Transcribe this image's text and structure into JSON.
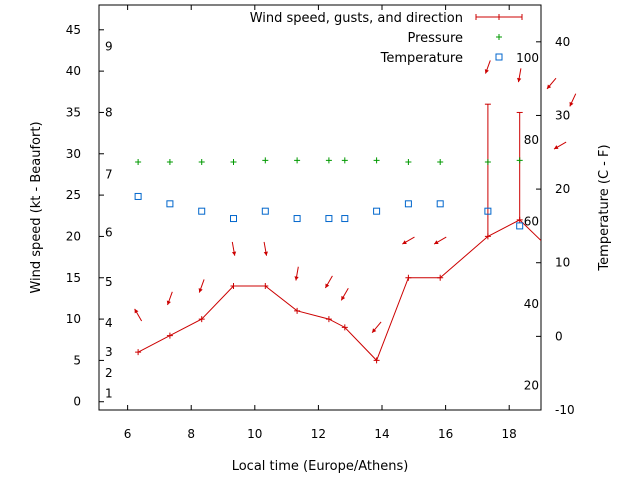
{
  "chart_data": {
    "type": "line",
    "xlabel": "Local time (Europe/Athens)",
    "ylabel": "Wind speed (kt - Beaufort)",
    "y2label": "Temperature (C - F)",
    "xlim": [
      5.1,
      19.0
    ],
    "ylim": [
      -1,
      48
    ],
    "y2lim": [
      -10,
      45
    ],
    "xticks": [
      6,
      8,
      10,
      12,
      14,
      16,
      18
    ],
    "yticks": [
      0,
      5,
      10,
      15,
      20,
      25,
      30,
      35,
      40,
      45
    ],
    "y2ticks": [
      -10,
      0,
      10,
      20,
      30,
      40
    ],
    "beaufort_labels": [
      {
        "label": "1",
        "y": 1
      },
      {
        "label": "2",
        "y": 3.5
      },
      {
        "label": "3",
        "y": 6
      },
      {
        "label": "4",
        "y": 9.5
      },
      {
        "label": "5",
        "y": 14.5
      },
      {
        "label": "6",
        "y": 20.5
      },
      {
        "label": "7",
        "y": 27.5
      },
      {
        "label": "8",
        "y": 35
      },
      {
        "label": "9",
        "y": 43
      }
    ],
    "fahrenheit_labels": [
      {
        "label": "20",
        "y2": -6.7
      },
      {
        "label": "40",
        "y2": 4.4
      },
      {
        "label": "60",
        "y2": 15.6
      },
      {
        "label": "80",
        "y2": 26.7
      },
      {
        "label": "100",
        "y2": 37.8
      }
    ],
    "legend_position": "top-right",
    "series": [
      {
        "name": "Wind speed, gusts, and direction",
        "color": "#cc0000",
        "x": [
          6.33,
          7.33,
          8.33,
          9.33,
          10.33,
          11.33,
          12.33,
          12.83,
          13.83,
          14.83,
          15.83,
          17.33,
          18.33,
          19.0
        ],
        "y": [
          6,
          8,
          10,
          14,
          14,
          11,
          10,
          9,
          5,
          15,
          15,
          20,
          22,
          19.5
        ],
        "gust_high": [
          null,
          null,
          null,
          null,
          null,
          null,
          null,
          null,
          null,
          null,
          null,
          36,
          35,
          null
        ],
        "direction_arrows": [
          {
            "x": 6.33,
            "y": 10.5,
            "deg": 330
          },
          {
            "x": 7.33,
            "y": 12.5,
            "deg": 200
          },
          {
            "x": 8.33,
            "y": 14,
            "deg": 200
          },
          {
            "x": 9.33,
            "y": 18.5,
            "deg": 170
          },
          {
            "x": 10.33,
            "y": 18.5,
            "deg": 170
          },
          {
            "x": 11.33,
            "y": 15.5,
            "deg": 190
          },
          {
            "x": 12.33,
            "y": 14.5,
            "deg": 210
          },
          {
            "x": 12.83,
            "y": 13,
            "deg": 210
          },
          {
            "x": 13.83,
            "y": 9,
            "deg": 220
          },
          {
            "x": 14.83,
            "y": 19.5,
            "deg": 240
          },
          {
            "x": 15.83,
            "y": 19.5,
            "deg": 240
          },
          {
            "x": 17.33,
            "y": 40.5,
            "deg": 200
          },
          {
            "x": 18.33,
            "y": 39.5,
            "deg": 190
          },
          {
            "x": 19.33,
            "y": 38.5,
            "deg": 220
          },
          {
            "x": 20.0,
            "y": 36.5,
            "deg": 205
          },
          {
            "x": 19.6,
            "y": 31,
            "deg": 240
          }
        ]
      },
      {
        "name": "Pressure",
        "color": "#009900",
        "x": [
          6.33,
          7.33,
          8.33,
          9.33,
          10.33,
          11.33,
          12.33,
          12.83,
          13.83,
          14.83,
          15.83,
          17.33,
          18.33
        ],
        "y": [
          29,
          29,
          29,
          29,
          29.2,
          29.2,
          29.2,
          29.2,
          29.2,
          29,
          29,
          29,
          29.2
        ]
      },
      {
        "name": "Temperature",
        "color": "#0066cc",
        "x": [
          6.33,
          7.33,
          8.33,
          9.33,
          10.33,
          11.33,
          12.33,
          12.83,
          13.83,
          14.83,
          15.83,
          17.33,
          18.33
        ],
        "y2": [
          19,
          18,
          17,
          16,
          17,
          16,
          16,
          16,
          17,
          18,
          18,
          17,
          15
        ]
      }
    ]
  }
}
